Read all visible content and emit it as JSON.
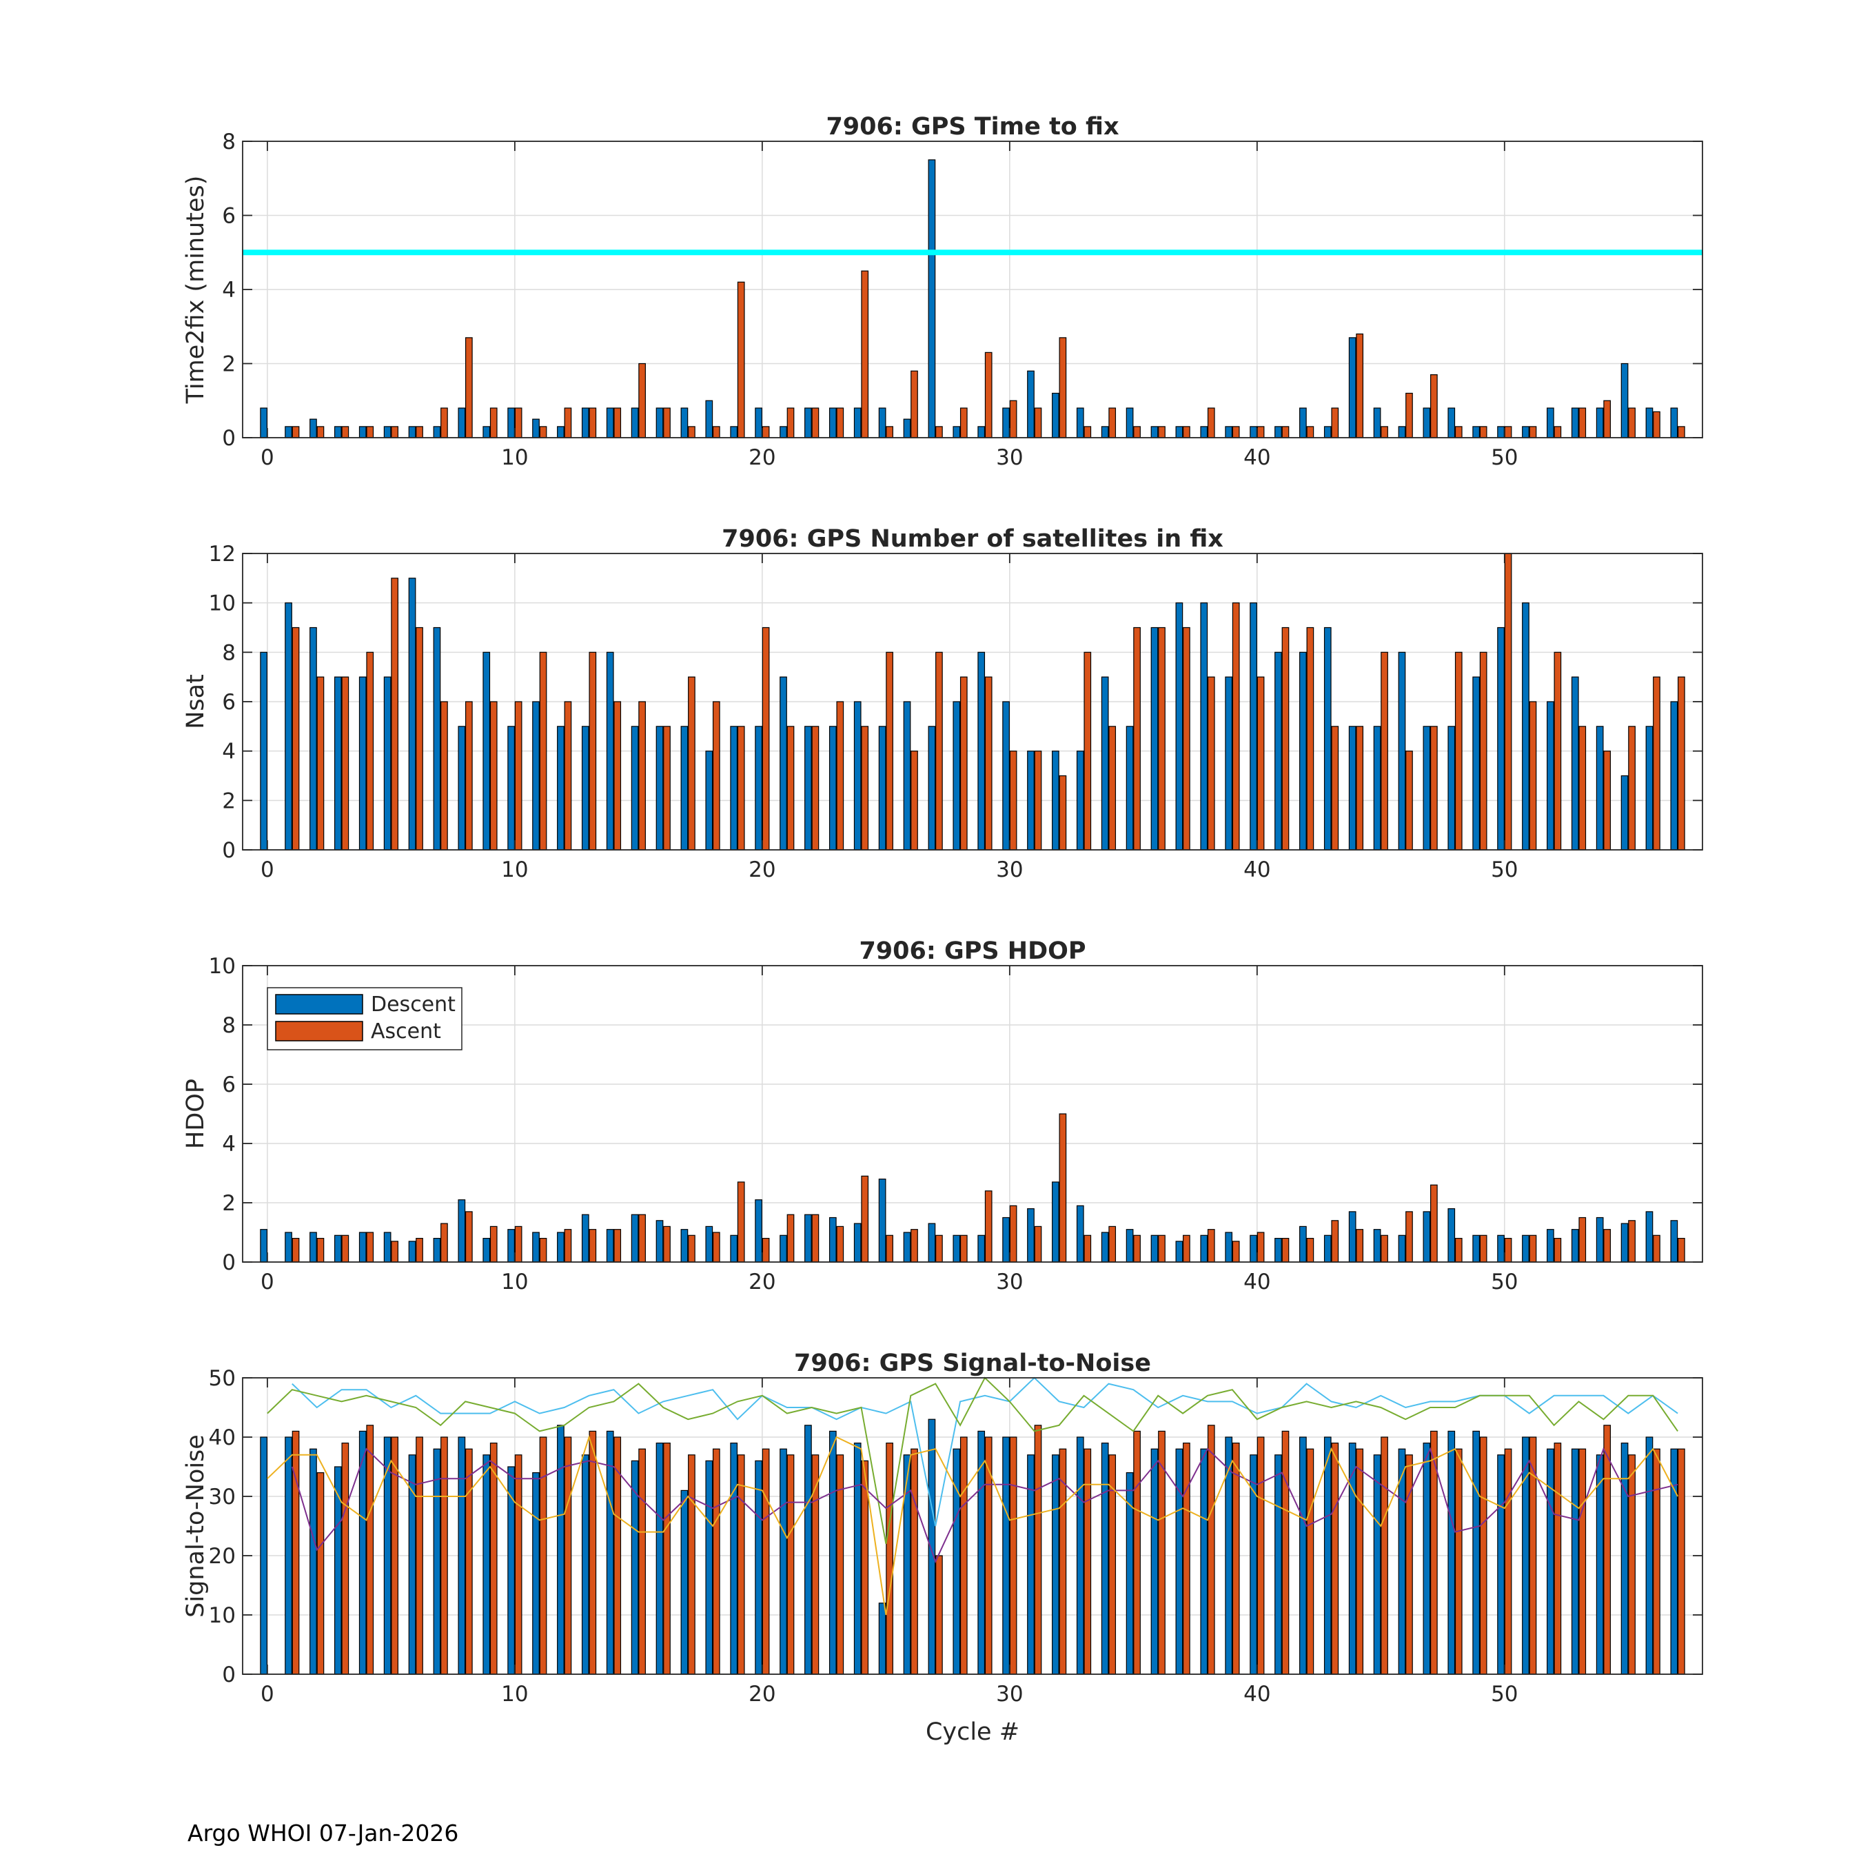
{
  "footer": "Argo WHOI 07-Jan-2026",
  "colors": {
    "descent": "#0072BD",
    "ascent": "#D95319",
    "threshold": "#00FFFF",
    "sat1": "#4DBEEE",
    "sat2": "#77AC30",
    "sat3": "#7E2F8E",
    "sat4": "#EDB120"
  },
  "chart_data": [
    {
      "type": "bar",
      "title": "7906: GPS Time to fix",
      "xlabel": "",
      "ylabel": "Time2fix (minutes)",
      "xlim": [
        -1,
        58
      ],
      "ylim": [
        0,
        8
      ],
      "yticks": [
        0,
        2,
        4,
        6,
        8
      ],
      "xticks": [
        0,
        10,
        20,
        30,
        40,
        50
      ],
      "grid": true,
      "threshold": 5,
      "series": [
        {
          "name": "Descent",
          "values": [
            0.8,
            0.3,
            0.5,
            0.3,
            0.3,
            0.3,
            0.3,
            0.3,
            0.8,
            0.3,
            0.8,
            0.5,
            0.3,
            0.8,
            0.8,
            0.8,
            0.8,
            0.8,
            1.0,
            0.3,
            0.8,
            0.3,
            0.8,
            0.8,
            0.8,
            0.8,
            0.5,
            7.5,
            0.3,
            0.3,
            0.8,
            1.8,
            1.2,
            0.8,
            0.3,
            0.8,
            0.3,
            0.3,
            0.3,
            0.3,
            0.3,
            0.3,
            0.8,
            0.3,
            2.7,
            0.8,
            0.3,
            0.8,
            0.8,
            0.3,
            0.3,
            0.3,
            0.8,
            0.8,
            0.8,
            2.0,
            0.8,
            0.8
          ]
        },
        {
          "name": "Ascent",
          "values": [
            null,
            0.3,
            0.3,
            0.3,
            0.3,
            0.3,
            0.3,
            0.8,
            2.7,
            0.8,
            0.8,
            0.3,
            0.8,
            0.8,
            0.8,
            2.0,
            0.8,
            0.3,
            0.3,
            4.2,
            0.3,
            0.8,
            0.8,
            0.8,
            4.5,
            0.3,
            1.8,
            0.3,
            0.8,
            2.3,
            1.0,
            0.8,
            2.7,
            0.3,
            0.8,
            0.3,
            0.3,
            0.3,
            0.8,
            0.3,
            0.3,
            0.3,
            0.3,
            0.8,
            2.8,
            0.3,
            1.2,
            1.7,
            0.3,
            0.3,
            0.3,
            0.3,
            0.3,
            0.8,
            1.0,
            0.8,
            0.7,
            0.3
          ]
        }
      ]
    },
    {
      "type": "bar",
      "title": "7906: GPS Number of satellites in fix",
      "xlabel": "",
      "ylabel": "Nsat",
      "xlim": [
        -1,
        58
      ],
      "ylim": [
        0,
        12
      ],
      "yticks": [
        0,
        2,
        4,
        6,
        8,
        10,
        12
      ],
      "xticks": [
        0,
        10,
        20,
        30,
        40,
        50
      ],
      "grid": true,
      "series": [
        {
          "name": "Descent",
          "values": [
            8,
            10,
            9,
            7,
            7,
            7,
            11,
            9,
            5,
            8,
            5,
            6,
            5,
            5,
            8,
            5,
            5,
            5,
            4,
            5,
            5,
            7,
            5,
            5,
            6,
            5,
            6,
            5,
            6,
            8,
            6,
            4,
            4,
            4,
            7,
            5,
            9,
            10,
            10,
            7,
            10,
            8,
            8,
            9,
            5,
            5,
            8,
            5,
            5,
            7,
            9,
            10,
            6,
            7,
            5,
            3,
            5,
            6
          ]
        },
        {
          "name": "Ascent",
          "values": [
            null,
            9,
            7,
            7,
            8,
            11,
            9,
            6,
            6,
            6,
            6,
            8,
            6,
            8,
            6,
            6,
            5,
            7,
            6,
            5,
            9,
            5,
            5,
            6,
            5,
            8,
            4,
            8,
            7,
            7,
            4,
            4,
            3,
            8,
            5,
            9,
            9,
            9,
            7,
            10,
            7,
            9,
            9,
            5,
            5,
            8,
            4,
            5,
            8,
            8,
            12,
            6,
            8,
            5,
            4,
            5,
            7,
            7
          ]
        }
      ]
    },
    {
      "type": "bar",
      "title": "7906: GPS HDOP",
      "xlabel": "",
      "ylabel": "HDOP",
      "xlim": [
        -1,
        58
      ],
      "ylim": [
        0,
        10
      ],
      "yticks": [
        0,
        2,
        4,
        6,
        8,
        10
      ],
      "xticks": [
        0,
        10,
        20,
        30,
        40,
        50
      ],
      "grid": true,
      "legend": {
        "position": "top-left",
        "entries": [
          "Descent",
          "Ascent"
        ]
      },
      "series": [
        {
          "name": "Descent",
          "values": [
            1.1,
            1.0,
            1.0,
            0.9,
            1.0,
            1.0,
            0.7,
            0.8,
            2.1,
            0.8,
            1.1,
            1.0,
            1.0,
            1.6,
            1.1,
            1.6,
            1.4,
            1.1,
            1.2,
            0.9,
            2.1,
            0.9,
            1.6,
            1.5,
            1.3,
            2.8,
            1.0,
            1.3,
            0.9,
            0.9,
            1.5,
            1.8,
            2.7,
            1.9,
            1.0,
            1.1,
            0.9,
            0.7,
            0.9,
            1.0,
            0.9,
            0.8,
            1.2,
            0.9,
            1.7,
            1.1,
            0.9,
            1.7,
            1.8,
            0.9,
            0.9,
            0.9,
            1.1,
            1.1,
            1.5,
            1.3,
            1.7,
            1.4
          ]
        },
        {
          "name": "Ascent",
          "values": [
            null,
            0.8,
            0.8,
            0.9,
            1.0,
            0.7,
            0.8,
            1.3,
            1.7,
            1.2,
            1.2,
            0.8,
            1.1,
            1.1,
            1.1,
            1.6,
            1.2,
            0.9,
            1.0,
            2.7,
            0.8,
            1.6,
            1.6,
            1.2,
            2.9,
            0.9,
            1.1,
            0.9,
            0.9,
            2.4,
            1.9,
            1.2,
            5.0,
            0.9,
            1.2,
            0.9,
            0.9,
            0.9,
            1.1,
            0.7,
            1.0,
            0.8,
            0.8,
            1.4,
            1.1,
            0.9,
            1.7,
            2.6,
            0.8,
            0.9,
            0.8,
            0.9,
            0.8,
            1.5,
            1.1,
            1.4,
            0.9,
            0.8
          ]
        }
      ]
    },
    {
      "type": "bar",
      "title": "7906: GPS Signal-to-Noise",
      "xlabel": "Cycle #",
      "ylabel": "Signal-to-Noise",
      "xlim": [
        -1,
        58
      ],
      "ylim": [
        0,
        50
      ],
      "yticks": [
        0,
        10,
        20,
        30,
        40,
        50
      ],
      "xticks": [
        0,
        10,
        20,
        30,
        40,
        50
      ],
      "grid": true,
      "series": [
        {
          "name": "Descent",
          "values": [
            40,
            40,
            38,
            35,
            41,
            40,
            37,
            38,
            40,
            37,
            35,
            34,
            42,
            37,
            41,
            36,
            39,
            31,
            36,
            39,
            36,
            38,
            42,
            41,
            39,
            12,
            37,
            43,
            38,
            41,
            40,
            37,
            37,
            40,
            39,
            34,
            38,
            38,
            38,
            40,
            37,
            37,
            40,
            40,
            39,
            37,
            38,
            39,
            41,
            41,
            37,
            40,
            38,
            38,
            37,
            39,
            40,
            38
          ]
        },
        {
          "name": "Ascent",
          "values": [
            null,
            41,
            34,
            39,
            42,
            40,
            40,
            40,
            38,
            39,
            37,
            40,
            40,
            41,
            40,
            38,
            39,
            37,
            38,
            37,
            38,
            37,
            37,
            37,
            36,
            39,
            38,
            20,
            40,
            40,
            40,
            42,
            38,
            38,
            37,
            41,
            41,
            39,
            42,
            39,
            40,
            41,
            38,
            39,
            38,
            40,
            37,
            41,
            38,
            40,
            38,
            40,
            39,
            38,
            42,
            37,
            38,
            38
          ]
        }
      ],
      "lines": [
        {
          "name": "sat1",
          "values": [
            null,
            49,
            45,
            48,
            48,
            45,
            47,
            44,
            44,
            44,
            46,
            44,
            45,
            47,
            48,
            44,
            46,
            47,
            48,
            43,
            47,
            45,
            45,
            43,
            45,
            44,
            46,
            25,
            46,
            47,
            46,
            51,
            46,
            45,
            49,
            48,
            45,
            47,
            46,
            46,
            44,
            45,
            49,
            46,
            45,
            47,
            45,
            46,
            46,
            47,
            47,
            44,
            47,
            47,
            47,
            44,
            47,
            44
          ]
        },
        {
          "name": "sat2",
          "values": [
            44,
            48,
            47,
            46,
            47,
            46,
            45,
            42,
            46,
            45,
            44,
            41,
            42,
            45,
            46,
            49,
            45,
            43,
            44,
            46,
            47,
            44,
            45,
            44,
            45,
            22,
            47,
            49,
            42,
            50,
            46,
            41,
            42,
            47,
            44,
            41,
            47,
            44,
            47,
            48,
            43,
            45,
            46,
            45,
            46,
            45,
            43,
            45,
            45,
            47,
            47,
            47,
            42,
            46,
            43,
            47,
            47,
            41
          ]
        },
        {
          "name": "sat3",
          "values": [
            null,
            35,
            21,
            26,
            38,
            34,
            32,
            33,
            33,
            36,
            33,
            33,
            35,
            36,
            35,
            30,
            26,
            30,
            28,
            30,
            26,
            29,
            29,
            31,
            32,
            28,
            31,
            19,
            28,
            32,
            32,
            31,
            33,
            29,
            31,
            31,
            36,
            30,
            38,
            34,
            32,
            34,
            25,
            27,
            35,
            32,
            29,
            38,
            24,
            25,
            29,
            36,
            27,
            26,
            38,
            30,
            31,
            32
          ]
        },
        {
          "name": "sat4",
          "values": [
            33,
            37,
            37,
            29,
            26,
            36,
            30,
            30,
            30,
            35,
            29,
            26,
            27,
            40,
            27,
            24,
            24,
            30,
            25,
            32,
            31,
            23,
            30,
            40,
            38,
            10,
            37,
            38,
            30,
            36,
            26,
            27,
            28,
            32,
            32,
            28,
            26,
            28,
            26,
            36,
            30,
            28,
            26,
            38,
            30,
            25,
            35,
            36,
            38,
            30,
            28,
            34,
            31,
            28,
            33,
            33,
            38,
            30
          ]
        }
      ]
    }
  ]
}
